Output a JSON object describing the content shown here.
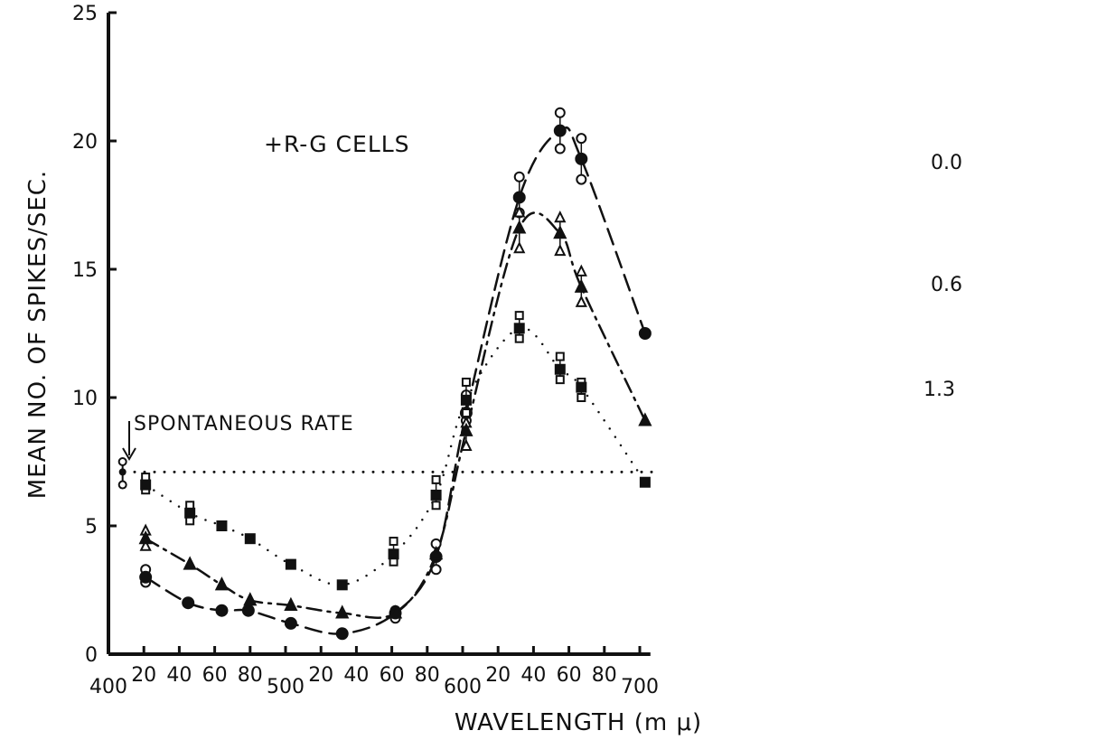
{
  "chart_data": {
    "type": "scatter",
    "title": "+R-G CELLS",
    "xlabel": "WAVELENGTH (m μ)",
    "ylabel": "MEAN NO. OF SPIKES/SEC.",
    "xlim": [
      400,
      705
    ],
    "ylim": [
      0,
      25
    ],
    "x_ticks": [
      400,
      420,
      440,
      460,
      480,
      500,
      520,
      540,
      560,
      580,
      600,
      620,
      640,
      660,
      680,
      700
    ],
    "x_tick_labels": [
      "400",
      "20",
      "40",
      "60",
      "80",
      "500",
      "20",
      "40",
      "60",
      "80",
      "600",
      "20",
      "40",
      "60",
      "80",
      "700"
    ],
    "y_ticks": [
      0,
      5,
      10,
      15,
      20,
      25
    ],
    "y_tick_labels": [
      "0",
      "5",
      "10",
      "15",
      "20",
      "25"
    ],
    "grid": false,
    "spontaneous_rate": {
      "label": "SPONTANEOUS RATE",
      "value": 7.1,
      "marker": {
        "x": 408,
        "mean": 7.1,
        "low": 6.6,
        "high": 7.5
      }
    },
    "series": [
      {
        "name": "0.0",
        "line_style": "dashed",
        "x": [
          421,
          445,
          464,
          479,
          503,
          532,
          562,
          585,
          602,
          632,
          655,
          667,
          703
        ],
        "y": [
          3.0,
          2.0,
          1.7,
          1.7,
          1.2,
          0.8,
          1.6,
          3.8,
          9.4,
          17.8,
          20.4,
          19.3,
          12.5
        ],
        "whiskers": [
          [
            2.8,
            3.3
          ],
          null,
          null,
          null,
          null,
          null,
          [
            1.4,
            1.7
          ],
          [
            3.3,
            4.3
          ],
          [
            9.1,
            10.1
          ],
          [
            17.2,
            18.6
          ],
          [
            19.7,
            21.1
          ],
          [
            18.5,
            20.1
          ],
          null
        ]
      },
      {
        "name": "0.6",
        "line_style": "dash-dot",
        "x": [
          421,
          446,
          464,
          480,
          503,
          532,
          562,
          585,
          602,
          632,
          655,
          667,
          703
        ],
        "y": [
          4.5,
          3.5,
          2.7,
          2.1,
          1.9,
          1.6,
          1.6,
          3.9,
          8.7,
          16.6,
          16.4,
          14.3,
          9.1
        ],
        "whiskers": [
          [
            4.2,
            4.8
          ],
          null,
          null,
          null,
          null,
          null,
          null,
          null,
          [
            8.1,
            9.0
          ],
          [
            15.8,
            17.2
          ],
          [
            15.7,
            17.0
          ],
          [
            13.7,
            14.9
          ],
          null
        ]
      },
      {
        "name": "1.3",
        "line_style": "dotted",
        "x": [
          421,
          446,
          464,
          480,
          503,
          532,
          561,
          585,
          602,
          632,
          655,
          667,
          703
        ],
        "y": [
          6.6,
          5.5,
          5.0,
          4.5,
          3.5,
          2.7,
          3.9,
          6.2,
          9.9,
          12.7,
          11.1,
          10.4,
          6.7
        ],
        "whiskers": [
          [
            6.4,
            6.9
          ],
          [
            5.2,
            5.8
          ],
          null,
          null,
          null,
          null,
          [
            3.6,
            4.4
          ],
          [
            5.8,
            6.8
          ],
          [
            9.4,
            10.6
          ],
          [
            12.3,
            13.2
          ],
          [
            10.7,
            11.6
          ],
          [
            10.0,
            10.6
          ],
          null
        ]
      }
    ]
  }
}
